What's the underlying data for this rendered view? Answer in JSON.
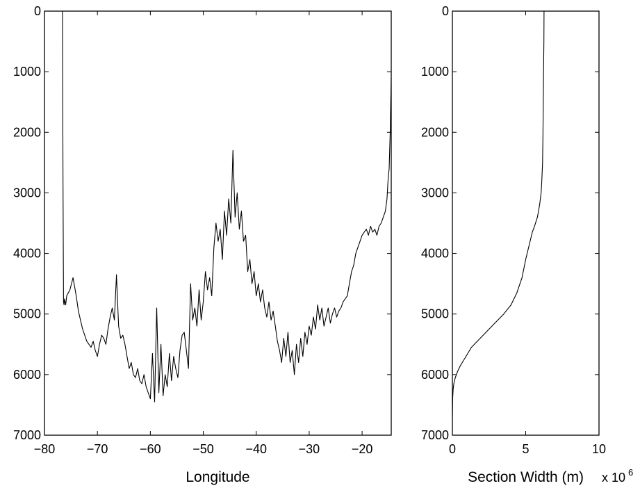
{
  "chart_data": [
    {
      "type": "line",
      "title": "",
      "xlabel": "Longitude",
      "ylabel": "",
      "xlim": [
        -80,
        -14.5
      ],
      "ylim": [
        0,
        7000
      ],
      "y_reversed": true,
      "xticks": [
        -80,
        -70,
        -60,
        -50,
        -40,
        -30,
        -20
      ],
      "xtick_labels": [
        "−80",
        "−70",
        "−60",
        "−50",
        "−40",
        "−30",
        "−20"
      ],
      "yticks": [
        0,
        1000,
        2000,
        3000,
        4000,
        5000,
        6000,
        7000
      ],
      "ytick_labels": [
        "0",
        "1000",
        "2000",
        "3000",
        "4000",
        "5000",
        "6000",
        "7000"
      ],
      "grid": false,
      "series": [
        {
          "color": "#000000",
          "x": [
            -76.6,
            -76.5,
            -76.4,
            -76.3,
            -76.2,
            -76.0,
            -75.8,
            -75.5,
            -75.2,
            -74.9,
            -74.6,
            -74.3,
            -74.0,
            -73.6,
            -73.2,
            -72.8,
            -72.4,
            -72.0,
            -71.6,
            -71.2,
            -70.8,
            -70.4,
            -70.0,
            -69.6,
            -69.2,
            -68.8,
            -68.4,
            -68.0,
            -67.6,
            -67.2,
            -66.8,
            -66.4,
            -66.0,
            -65.6,
            -65.2,
            -64.8,
            -64.4,
            -64.0,
            -63.6,
            -63.2,
            -62.8,
            -62.4,
            -62.0,
            -61.6,
            -61.2,
            -60.8,
            -60.4,
            -60.0,
            -59.6,
            -59.2,
            -58.8,
            -58.4,
            -58.0,
            -57.6,
            -57.2,
            -56.8,
            -56.4,
            -56.0,
            -55.6,
            -55.2,
            -54.8,
            -54.4,
            -54.0,
            -53.6,
            -53.2,
            -52.8,
            -52.4,
            -52.0,
            -51.6,
            -51.2,
            -50.8,
            -50.4,
            -50.0,
            -49.6,
            -49.2,
            -48.8,
            -48.4,
            -48.0,
            -47.6,
            -47.2,
            -46.8,
            -46.4,
            -46.0,
            -45.6,
            -45.2,
            -44.8,
            -44.4,
            -44.0,
            -43.6,
            -43.2,
            -42.8,
            -42.4,
            -42.0,
            -41.6,
            -41.2,
            -40.8,
            -40.4,
            -40.0,
            -39.6,
            -39.2,
            -38.8,
            -38.4,
            -38.0,
            -37.6,
            -37.2,
            -36.8,
            -36.4,
            -36.0,
            -35.6,
            -35.2,
            -34.8,
            -34.4,
            -34.0,
            -33.6,
            -33.2,
            -32.8,
            -32.4,
            -32.0,
            -31.6,
            -31.2,
            -30.8,
            -30.4,
            -30.0,
            -29.6,
            -29.2,
            -28.8,
            -28.4,
            -28.0,
            -27.6,
            -27.2,
            -26.8,
            -26.4,
            -26.0,
            -25.6,
            -25.2,
            -24.8,
            -24.4,
            -24.0,
            -23.6,
            -23.2,
            -22.8,
            -22.4,
            -22.0,
            -21.6,
            -21.2,
            -20.8,
            -20.4,
            -20.0,
            -19.6,
            -19.2,
            -18.8,
            -18.4,
            -18.0,
            -17.6,
            -17.2,
            -16.8,
            -16.4,
            -16.0,
            -15.6,
            -15.3,
            -15.1,
            -14.9,
            -14.7,
            -14.5
          ],
          "y": [
            0,
            2900,
            4800,
            4850,
            4750,
            4850,
            4700,
            4650,
            4600,
            4500,
            4400,
            4550,
            4700,
            4950,
            5100,
            5250,
            5350,
            5450,
            5500,
            5550,
            5450,
            5600,
            5700,
            5500,
            5350,
            5400,
            5500,
            5250,
            5050,
            4900,
            5100,
            4350,
            5200,
            5400,
            5350,
            5500,
            5700,
            5900,
            5800,
            6000,
            6050,
            5900,
            6100,
            6150,
            6000,
            6200,
            6300,
            6400,
            5650,
            6450,
            4900,
            6300,
            5500,
            6350,
            6000,
            6200,
            5650,
            6100,
            5700,
            5900,
            6050,
            5600,
            5350,
            5300,
            5600,
            5900,
            4500,
            5100,
            4900,
            5200,
            4600,
            5100,
            4800,
            4300,
            4600,
            4400,
            4700,
            3900,
            3500,
            3800,
            3600,
            4100,
            3300,
            3700,
            3100,
            3500,
            2300,
            3400,
            3000,
            3600,
            3300,
            3800,
            3700,
            4300,
            4100,
            4500,
            4300,
            4700,
            4500,
            4800,
            4600,
            4900,
            5050,
            4800,
            5100,
            4950,
            5200,
            5450,
            5600,
            5800,
            5400,
            5700,
            5300,
            5800,
            5600,
            6000,
            5500,
            5800,
            5400,
            5700,
            5300,
            5500,
            5200,
            5350,
            5050,
            5250,
            4850,
            5100,
            4900,
            5200,
            5050,
            4900,
            5150,
            5000,
            4900,
            5050,
            4950,
            4900,
            4800,
            4750,
            4700,
            4500,
            4300,
            4200,
            4000,
            3900,
            3800,
            3700,
            3650,
            3600,
            3700,
            3550,
            3650,
            3600,
            3700,
            3550,
            3500,
            3400,
            3300,
            3100,
            2800,
            2600,
            2000,
            1100
          ]
        }
      ]
    },
    {
      "type": "line",
      "title": "",
      "xlabel": "Section Width (m)",
      "x_multiplier_label": "x 10",
      "x_multiplier_exponent": "6",
      "ylabel": "",
      "xlim": [
        0,
        10
      ],
      "ylim": [
        0,
        7000
      ],
      "y_reversed": true,
      "xticks": [
        0,
        5,
        10
      ],
      "xtick_labels": [
        "0",
        "5",
        "10"
      ],
      "yticks": [
        0,
        1000,
        2000,
        3000,
        4000,
        5000,
        6000,
        7000
      ],
      "ytick_labels": [
        "0",
        "1000",
        "2000",
        "3000",
        "4000",
        "5000",
        "6000",
        "7000"
      ],
      "grid": false,
      "series": [
        {
          "color": "#000000",
          "x": [
            6.25,
            6.24,
            6.22,
            6.2,
            6.18,
            6.15,
            6.1,
            6.05,
            5.95,
            5.8,
            5.6,
            5.45,
            5.35,
            5.2,
            5.0,
            4.75,
            4.4,
            4.0,
            3.5,
            2.9,
            2.3,
            1.7,
            1.3,
            1.05,
            0.8,
            0.55,
            0.35,
            0.2,
            0.1,
            0.05,
            0.02,
            0.0
          ],
          "y": [
            0,
            500,
            1000,
            1500,
            2000,
            2500,
            2800,
            3000,
            3200,
            3400,
            3550,
            3650,
            3750,
            3900,
            4100,
            4400,
            4650,
            4850,
            5000,
            5150,
            5300,
            5450,
            5550,
            5650,
            5750,
            5850,
            5950,
            6050,
            6150,
            6250,
            6400,
            6700
          ]
        }
      ]
    }
  ]
}
